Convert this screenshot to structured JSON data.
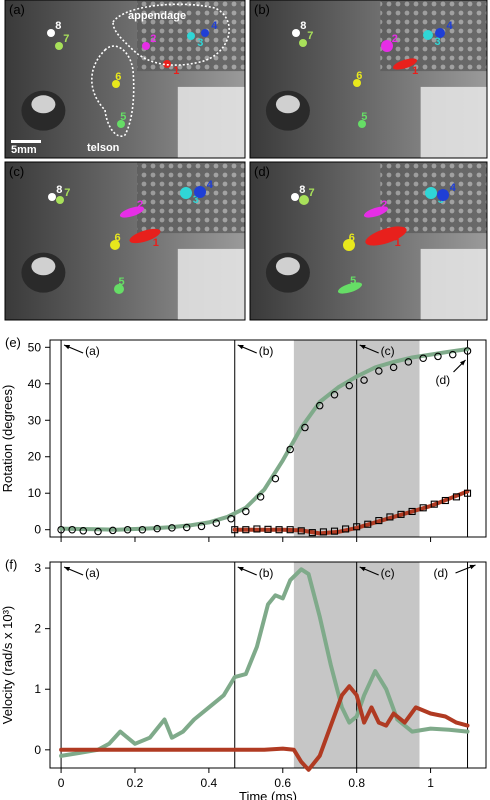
{
  "panels": {
    "a": {
      "label": "(a)",
      "appendage_label": "appendage",
      "telson_label": "telson",
      "scale_label": "5mm"
    },
    "b": {
      "label": "(b)"
    },
    "c": {
      "label": "(c)"
    },
    "d": {
      "label": "(d)"
    }
  },
  "point_labels": [
    "1",
    "2",
    "3",
    "4",
    "5",
    "6",
    "7",
    "8"
  ],
  "point_colors": {
    "1": "#e8201c",
    "2": "#e62ee6",
    "3": "#2fd6d6",
    "4": "#1f3fd6",
    "5": "#66dd66",
    "6": "#e8e81c",
    "7": "#a8e05a",
    "8": "#ffffff"
  },
  "chart_data": [
    {
      "panel": "(e)",
      "type": "line",
      "ylabel": "Rotation (degrees)",
      "xlim": [
        -0.03,
        1.15
      ],
      "ylim": [
        -2,
        52
      ],
      "yticks": [
        0,
        10,
        20,
        30,
        40,
        50
      ],
      "shaded_interval": [
        0.63,
        0.97
      ],
      "markers": [
        {
          "x": 0.0,
          "label": "(a)"
        },
        {
          "x": 0.47,
          "label": "(b)"
        },
        {
          "x": 0.8,
          "label": "(c)"
        },
        {
          "x": 1.1,
          "label": "(d)"
        }
      ],
      "series": [
        {
          "color": "#7faa8a",
          "x": [
            0.0,
            0.05,
            0.1,
            0.15,
            0.2,
            0.25,
            0.3,
            0.35,
            0.4,
            0.45,
            0.5,
            0.55,
            0.6,
            0.65,
            0.7,
            0.75,
            0.8,
            0.85,
            0.9,
            0.95,
            1.0,
            1.05,
            1.1
          ],
          "values": [
            0.3,
            0.2,
            0.1,
            0.0,
            0.2,
            0.4,
            0.7,
            1.2,
            2.0,
            3.5,
            6.0,
            11.0,
            19.0,
            28.0,
            35.0,
            39.0,
            42.0,
            44.5,
            46.0,
            47.2,
            48.0,
            48.8,
            49.5
          ]
        },
        {
          "color": "#b03a22",
          "x": [
            0.47,
            0.55,
            0.6,
            0.65,
            0.7,
            0.75,
            0.8,
            0.85,
            0.9,
            0.95,
            1.0,
            1.05,
            1.1
          ],
          "values": [
            0.0,
            0.0,
            0.0,
            -0.2,
            -1.0,
            -0.6,
            0.5,
            2.0,
            3.5,
            5.0,
            6.5,
            8.5,
            10.5
          ]
        }
      ],
      "points_circle_x": [
        0.0,
        0.03,
        0.06,
        0.1,
        0.14,
        0.18,
        0.22,
        0.26,
        0.3,
        0.34,
        0.38,
        0.42,
        0.46,
        0.5,
        0.54,
        0.58,
        0.62,
        0.66,
        0.7,
        0.74,
        0.78,
        0.82,
        0.86,
        0.9,
        0.94,
        0.98,
        1.02,
        1.06,
        1.1
      ],
      "points_circle_y": [
        0.0,
        0.0,
        -0.3,
        -0.5,
        -0.2,
        0.0,
        0.0,
        0.3,
        0.5,
        0.6,
        0.9,
        1.8,
        3.0,
        5.0,
        9.0,
        14.0,
        22.0,
        28.0,
        34.0,
        37.0,
        39.5,
        41.0,
        43.5,
        44.5,
        46.0,
        47.0,
        47.5,
        48.0,
        49.0
      ],
      "points_square_x": [
        0.47,
        0.5,
        0.53,
        0.56,
        0.59,
        0.62,
        0.65,
        0.68,
        0.71,
        0.74,
        0.77,
        0.8,
        0.83,
        0.86,
        0.89,
        0.92,
        0.95,
        0.98,
        1.01,
        1.04,
        1.07,
        1.1
      ],
      "points_square_y": [
        0.0,
        0.0,
        0.2,
        0.1,
        0.0,
        0.0,
        -0.3,
        -0.8,
        -0.6,
        -0.4,
        0.2,
        0.8,
        1.5,
        2.5,
        3.5,
        4.2,
        5.0,
        6.0,
        7.0,
        8.0,
        9.0,
        10.0
      ]
    },
    {
      "panel": "(f)",
      "type": "line",
      "xlabel": "Time (ms)",
      "ylabel": "Velocity (rad/s x 10³)",
      "xlim": [
        -0.03,
        1.15
      ],
      "ylim": [
        -0.3,
        3.1
      ],
      "xticks": [
        0,
        0.2,
        0.4,
        0.6,
        0.8,
        1
      ],
      "xtick_labels": [
        "0",
        "0.2",
        "0.4",
        "0.6",
        "0.8",
        "1"
      ],
      "yticks": [
        0,
        1,
        2,
        3
      ],
      "shaded_interval": [
        0.63,
        0.97
      ],
      "markers": [
        {
          "x": 0.0,
          "label": "(a)"
        },
        {
          "x": 0.47,
          "label": "(b)"
        },
        {
          "x": 0.8,
          "label": "(c)"
        },
        {
          "x": 1.1,
          "label": "(d)"
        }
      ],
      "series": [
        {
          "color": "#7faa8a",
          "x": [
            0.0,
            0.05,
            0.1,
            0.13,
            0.16,
            0.2,
            0.24,
            0.28,
            0.3,
            0.33,
            0.36,
            0.4,
            0.44,
            0.47,
            0.5,
            0.53,
            0.56,
            0.58,
            0.6,
            0.62,
            0.65,
            0.67,
            0.7,
            0.73,
            0.76,
            0.78,
            0.8,
            0.82,
            0.85,
            0.88,
            0.91,
            0.95,
            1.0,
            1.05,
            1.1
          ],
          "values": [
            -0.1,
            -0.05,
            0.0,
            0.1,
            0.3,
            0.1,
            0.2,
            0.5,
            0.2,
            0.3,
            0.5,
            0.7,
            0.9,
            1.2,
            1.25,
            1.7,
            2.4,
            2.55,
            2.5,
            2.8,
            2.98,
            2.9,
            2.2,
            1.4,
            0.7,
            0.45,
            0.55,
            0.9,
            1.3,
            1.0,
            0.5,
            0.3,
            0.35,
            0.33,
            0.3
          ]
        },
        {
          "color": "#b03a22",
          "x": [
            0.0,
            0.1,
            0.2,
            0.3,
            0.4,
            0.5,
            0.55,
            0.6,
            0.63,
            0.65,
            0.67,
            0.7,
            0.73,
            0.76,
            0.78,
            0.8,
            0.82,
            0.84,
            0.86,
            0.88,
            0.9,
            0.93,
            0.96,
            1.0,
            1.04,
            1.07,
            1.1
          ],
          "values": [
            0.0,
            0.0,
            0.0,
            0.0,
            0.0,
            0.0,
            0.0,
            0.02,
            0.0,
            -0.2,
            -0.33,
            -0.1,
            0.4,
            0.9,
            1.05,
            0.9,
            0.45,
            0.7,
            0.45,
            0.4,
            0.6,
            0.45,
            0.7,
            0.6,
            0.55,
            0.45,
            0.4
          ]
        }
      ]
    }
  ]
}
